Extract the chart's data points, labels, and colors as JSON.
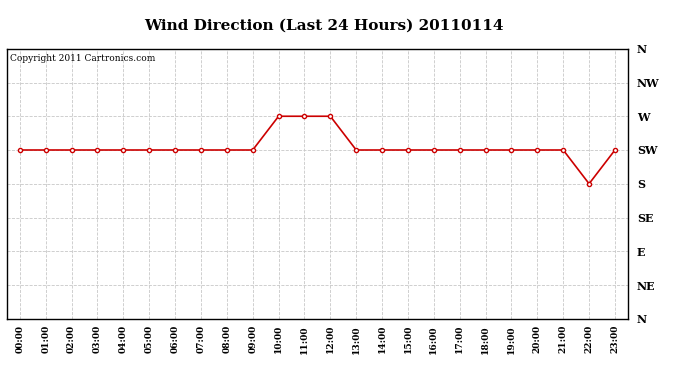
{
  "title": "Wind Direction (Last 24 Hours) 20110114",
  "copyright": "Copyright 2011 Cartronics.com",
  "x_labels": [
    "00:00",
    "01:00",
    "02:00",
    "03:00",
    "04:00",
    "05:00",
    "06:00",
    "07:00",
    "08:00",
    "09:00",
    "10:00",
    "11:00",
    "12:00",
    "13:00",
    "14:00",
    "15:00",
    "16:00",
    "17:00",
    "18:00",
    "19:00",
    "20:00",
    "21:00",
    "22:00",
    "23:00"
  ],
  "y_ticks_labels": [
    "N",
    "NE",
    "E",
    "SE",
    "S",
    "SW",
    "W",
    "NW",
    "N"
  ],
  "y_ticks_values": [
    0,
    45,
    90,
    135,
    180,
    225,
    270,
    315,
    360
  ],
  "wind_data": [
    225,
    225,
    225,
    225,
    225,
    225,
    225,
    225,
    225,
    225,
    270,
    270,
    270,
    225,
    225,
    225,
    225,
    225,
    225,
    225,
    225,
    225,
    180,
    225
  ],
  "line_color": "#cc0000",
  "marker_color": "#cc0000",
  "bg_color": "#ffffff",
  "grid_color": "#c8c8c8",
  "title_fontsize": 11,
  "copyright_fontsize": 6.5,
  "ytick_fontsize": 8,
  "xtick_fontsize": 6.5
}
